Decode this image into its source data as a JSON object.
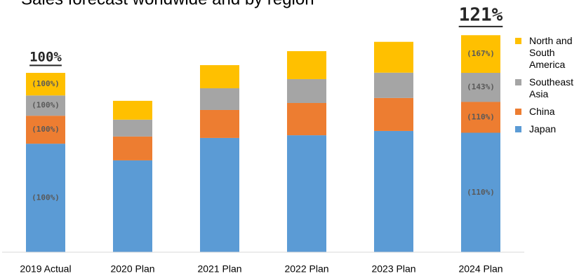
{
  "chart_data": {
    "type": "stacked_bar",
    "title": "Sales forecast worldwide and by region",
    "categories": [
      "2019 Actual",
      "2020 Plan",
      "2021 Plan",
      "2022 Plan",
      "2023 Plan",
      "2024 Plan"
    ],
    "series": [
      {
        "name": "Japan",
        "color": "#5b9bd5",
        "values": [
          60.5,
          51.2,
          63.7,
          65.2,
          67.6,
          66.6
        ]
      },
      {
        "name": "China",
        "color": "#ed7d31",
        "values": [
          15.6,
          13.3,
          15.6,
          18.0,
          18.4,
          17.2
        ]
      },
      {
        "name": "Southeast Asia",
        "color": "#a5a5a5",
        "values": [
          11.3,
          9.4,
          12.1,
          13.3,
          14.1,
          16.2
        ]
      },
      {
        "name": "North and South America",
        "color": "#ffc000",
        "values": [
          12.6,
          10.5,
          12.9,
          15.6,
          17.2,
          21.0
        ]
      }
    ],
    "ylim": [
      0,
      125
    ],
    "total_labels": [
      {
        "category": "2019 Actual",
        "text": "100%"
      },
      {
        "category": "2024 Plan",
        "text": "121%"
      }
    ],
    "segment_labels": [
      {
        "category": "2019 Actual",
        "series": "Japan",
        "text": "(100%)"
      },
      {
        "category": "2019 Actual",
        "series": "China",
        "text": "(100%)"
      },
      {
        "category": "2019 Actual",
        "series": "Southeast Asia",
        "text": "(100%)"
      },
      {
        "category": "2019 Actual",
        "series": "North and South America",
        "text": "(100%)"
      },
      {
        "category": "2024 Plan",
        "series": "Japan",
        "text": "(110%)"
      },
      {
        "category": "2024 Plan",
        "series": "China",
        "text": "(110%)"
      },
      {
        "category": "2024 Plan",
        "series": "Southeast Asia",
        "text": "(143%)"
      },
      {
        "category": "2024 Plan",
        "series": "North and South America",
        "text": "(167%)"
      }
    ]
  }
}
